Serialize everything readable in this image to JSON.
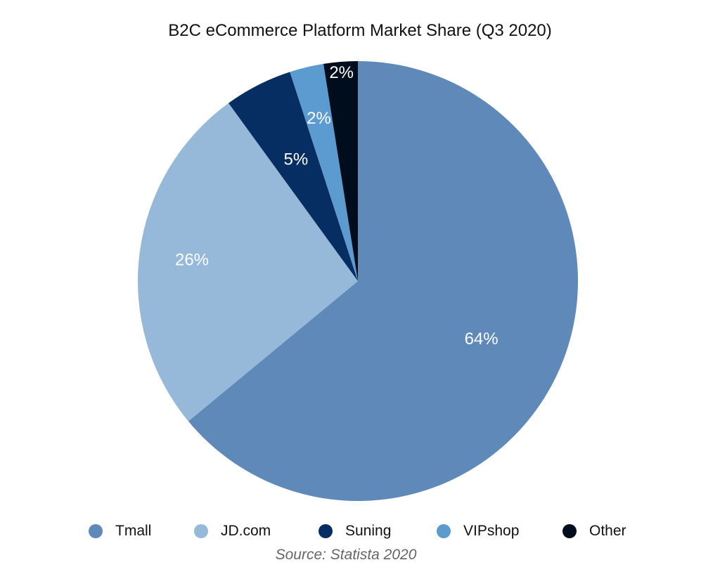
{
  "chart_data": {
    "type": "pie",
    "title": "B2C eCommerce Platform Market Share (Q3 2020)",
    "source": "Source: Statista 2020",
    "legend_position": "bottom",
    "series": [
      {
        "name": "Tmall",
        "value": 64,
        "label": "64%",
        "color": "#5f89b8"
      },
      {
        "name": "JD.com",
        "value": 26,
        "label": "26%",
        "color": "#96b9da"
      },
      {
        "name": "Suning",
        "value": 5,
        "label": "5%",
        "color": "#072e63"
      },
      {
        "name": "VIPshop",
        "value": 2.5,
        "label": "2%",
        "color": "#5b9bd0"
      },
      {
        "name": "Other",
        "value": 2.5,
        "label": "2%",
        "color": "#000d1c"
      }
    ]
  }
}
